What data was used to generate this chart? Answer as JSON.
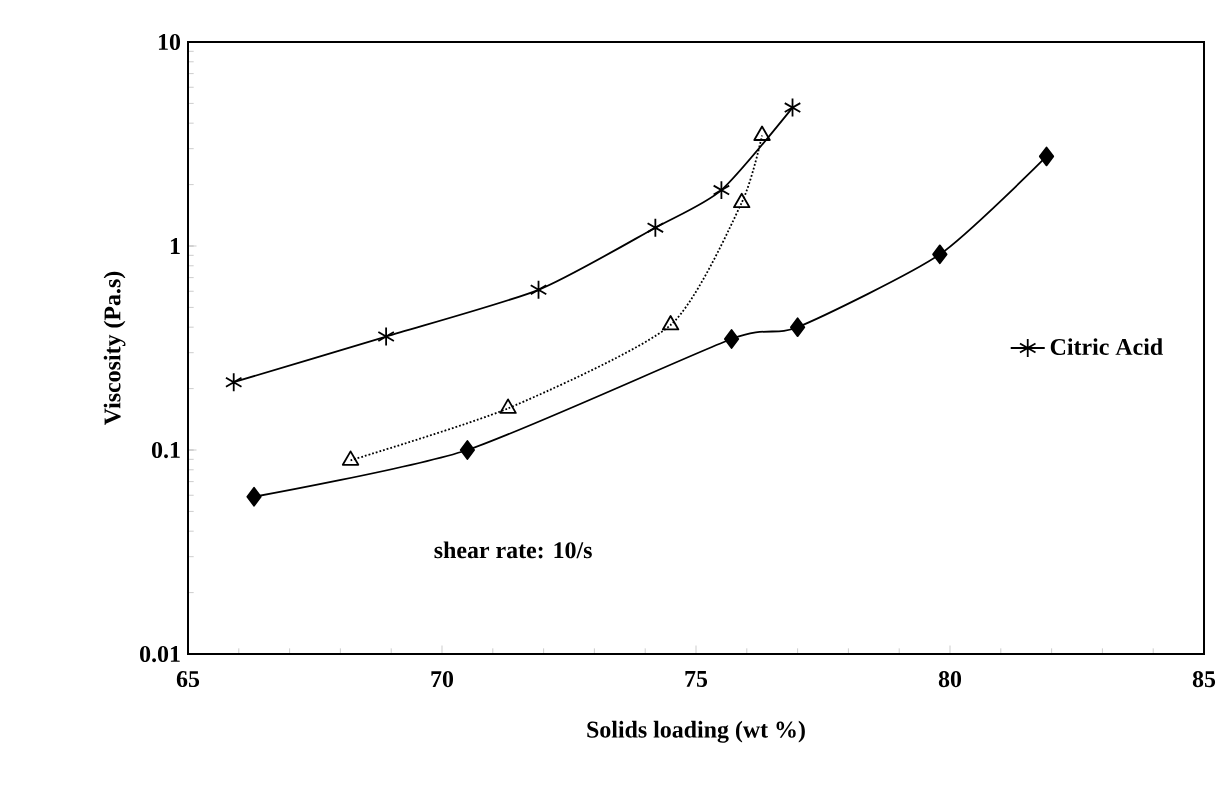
{
  "chart_data": {
    "type": "line",
    "xlabel": "Solids loading  (wt %)",
    "ylabel": "Viscosity (Pa.s)",
    "log": "y",
    "xlim": [
      65,
      85
    ],
    "xticks": [
      65,
      70,
      75,
      80,
      85
    ],
    "ylim": [
      0.01,
      10
    ],
    "yticks": [
      0.01,
      0.1,
      1,
      10
    ],
    "legend": "right",
    "grid": false,
    "annotations": [
      "shear rate: 10/s"
    ],
    "series": [
      {
        "color": "#000000",
        "marker": "diamond",
        "line_style": "solid",
        "x": [
          66.3,
          70.5,
          75.7,
          77.0,
          79.8,
          81.9
        ],
        "values": [
          0.059,
          0.1,
          0.35,
          0.4,
          0.91,
          2.75
        ]
      },
      {
        "name": "Citric Acid",
        "color": "#000000",
        "marker": "cross",
        "line_style": "solid",
        "x": [
          65.9,
          68.9,
          71.9,
          74.2,
          75.5,
          76.9
        ],
        "values": [
          0.215,
          0.36,
          0.61,
          1.23,
          1.88,
          4.77
        ]
      },
      {
        "color": "#000000",
        "marker": "triangle",
        "line_style": "dotted",
        "x": [
          68.2,
          71.3,
          74.5,
          75.9,
          76.3
        ],
        "values": [
          0.089,
          0.16,
          0.41,
          1.63,
          3.48
        ]
      }
    ]
  }
}
